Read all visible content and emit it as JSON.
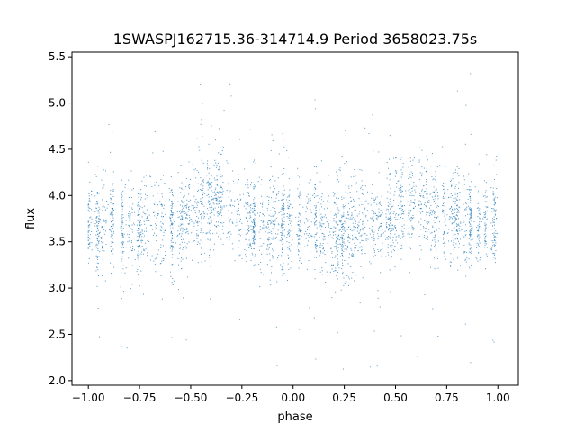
{
  "chart_data": {
    "type": "scatter",
    "title": "1SWASPJ162715.36-314714.9 Period 3658023.75s",
    "xlabel": "phase",
    "ylabel": "flux",
    "xlim": [
      -1.08,
      1.1
    ],
    "ylim": [
      1.95,
      5.55
    ],
    "xticks": [
      -1.0,
      -0.75,
      -0.5,
      -0.25,
      0.0,
      0.25,
      0.5,
      0.75,
      1.0
    ],
    "xtick_labels": [
      "−1.00",
      "−0.75",
      "−0.50",
      "−0.25",
      "0.00",
      "0.25",
      "0.50",
      "0.75",
      "1.00"
    ],
    "yticks": [
      2.0,
      2.5,
      3.0,
      3.5,
      4.0,
      4.5,
      5.0,
      5.5
    ],
    "ytick_labels": [
      "2.0",
      "2.5",
      "3.0",
      "3.5",
      "4.0",
      "4.5",
      "5.0",
      "5.5"
    ],
    "grid": false,
    "marker_color": "#1f77b4",
    "series": [
      {
        "phase_profile": {
          "x": [
            -1.0,
            -0.95,
            -0.9,
            -0.85,
            -0.8,
            -0.75,
            -0.7,
            -0.65,
            -0.6,
            -0.55,
            -0.5,
            -0.45,
            -0.4,
            -0.35,
            -0.3,
            -0.25,
            -0.2,
            -0.15,
            -0.1,
            -0.05,
            0.0,
            0.05,
            0.1,
            0.15,
            0.2,
            0.25,
            0.3,
            0.35,
            0.4,
            0.45,
            0.5,
            0.55,
            0.6,
            0.65,
            0.7,
            0.75,
            0.8,
            0.85,
            0.9,
            0.95,
            1.0
          ],
          "y": [
            3.7,
            3.65,
            3.7,
            3.65,
            3.6,
            3.6,
            3.65,
            3.7,
            3.65,
            3.7,
            3.8,
            3.9,
            3.9,
            3.95,
            3.8,
            3.75,
            3.75,
            3.7,
            3.7,
            3.7,
            3.7,
            3.7,
            3.7,
            3.65,
            3.6,
            3.6,
            3.65,
            3.7,
            3.65,
            3.7,
            3.8,
            3.9,
            3.95,
            3.95,
            3.8,
            3.75,
            3.75,
            3.7,
            3.7,
            3.7,
            3.7
          ]
        }
      }
    ]
  }
}
